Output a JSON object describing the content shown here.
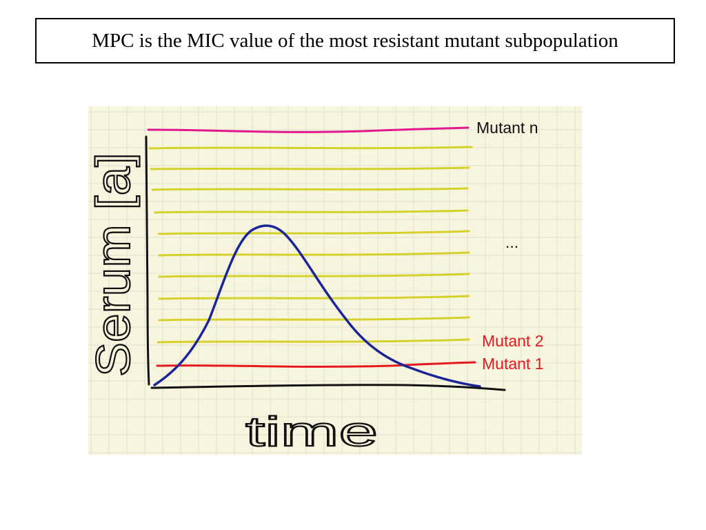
{
  "title": "MPC is the MIC value of the most resistant mutant subpopulation",
  "figure": {
    "y_axis_label": "Serum [a]",
    "x_axis_label": "time",
    "mutant_n_label": "Mutant n",
    "ellipsis_label": "...",
    "mutant_2_label": "Mutant 2",
    "mutant_1_label": "Mutant 1",
    "colors": {
      "background": "#f8f5df",
      "grid": "#e2e0d2",
      "mutant_n": "#e2188f",
      "intermediate": "#d4d22a",
      "mutant_1": "#e5191d",
      "mutant_2_label": "#e5191d",
      "curve": "#1a2597",
      "axes": "#111111"
    }
  }
}
